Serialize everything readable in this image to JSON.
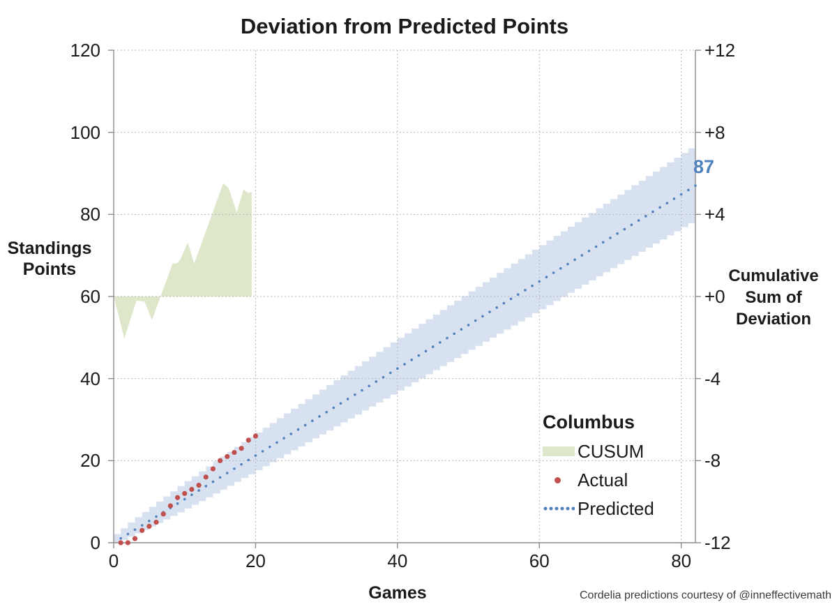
{
  "title": "Deviation from Predicted Points",
  "credit": "Cordelia predictions courtesy of @inneffectivemath",
  "colors": {
    "cusum_fill": "#dfe7ca",
    "band_fill": "#d7e1ef",
    "actual_point": "#c0504d",
    "predicted_line": "#4f81bd",
    "gridline": "#b5b5b5",
    "axis_line": "#8c8c8c",
    "text": "#1a1a1a"
  },
  "axes": {
    "x": {
      "label": "Games",
      "ticks": [
        0,
        20,
        40,
        60,
        80
      ],
      "min": 0,
      "max": 82
    },
    "y_left": {
      "label_lines": [
        "Standings",
        "Points"
      ],
      "ticks": [
        0,
        20,
        40,
        60,
        80,
        100,
        120
      ],
      "min": 0,
      "max": 120
    },
    "y_right": {
      "label_lines": [
        "Cumulative",
        "Sum of",
        "Deviation"
      ],
      "tick_labels": [
        "+12",
        "+8",
        "+4",
        "+0",
        "-4",
        "-8",
        "-12"
      ],
      "tick_values": [
        12,
        8,
        4,
        0,
        -4,
        -8,
        -12
      ],
      "min": -12,
      "max": 12
    }
  },
  "legend": {
    "title": "Columbus",
    "items": [
      {
        "label": "CUSUM",
        "type": "area",
        "color": "#dfe7ca"
      },
      {
        "label": "Actual",
        "type": "point",
        "color": "#c0504d"
      },
      {
        "label": "Predicted",
        "type": "dotted-line",
        "color": "#4f81bd"
      }
    ]
  },
  "annotation": {
    "text": "87",
    "color": "#4f81bd"
  },
  "chart_data": {
    "type": "combo",
    "title": "Deviation from Predicted Points",
    "xlabel": "Games",
    "x_range": [
      0,
      82
    ],
    "y_left_range": [
      0,
      120
    ],
    "y_right_range": [
      -12,
      12
    ],
    "grid": "dashed",
    "legend_position": "inside-lower-right",
    "series": [
      {
        "name": "CUSUM",
        "type": "area",
        "axis": "right",
        "color": "#dfe7ca",
        "baseline": 0,
        "points": [
          [
            0,
            0
          ],
          [
            1.5,
            -2.05
          ],
          [
            3.2,
            -0.2
          ],
          [
            4.35,
            -0.25
          ],
          [
            5.4,
            -1.15
          ],
          [
            8.3,
            1.6
          ],
          [
            8.9,
            1.62
          ],
          [
            9.35,
            1.78
          ],
          [
            10.45,
            2.62
          ],
          [
            11.35,
            1.6
          ],
          [
            15.45,
            5.52
          ],
          [
            16.2,
            5.28
          ],
          [
            17.35,
            4.1
          ],
          [
            18.3,
            5.22
          ],
          [
            18.95,
            5.05
          ],
          [
            19.45,
            5.1
          ]
        ]
      },
      {
        "name": "Actual",
        "type": "scatter",
        "axis": "left",
        "color": "#c0504d",
        "games": [
          1,
          2,
          3,
          4,
          5,
          6,
          7,
          8,
          9,
          10,
          11,
          12,
          13,
          14,
          15,
          16,
          17,
          18,
          19,
          20
        ],
        "values": [
          0,
          0,
          1,
          3,
          4,
          5,
          7,
          9,
          11,
          12,
          13,
          14,
          16,
          18,
          20,
          21,
          22,
          23,
          25,
          26
        ]
      },
      {
        "name": "Predicted",
        "type": "dotted-line",
        "axis": "left",
        "color": "#4f81bd",
        "start_game": 1,
        "end_game": 82,
        "start_value": 0,
        "end_value": 87,
        "end_label": "87"
      },
      {
        "name": "Prediction band",
        "type": "stepped-band",
        "axis": "left",
        "color": "#d7e1ef",
        "control_points": [
          {
            "game": 0,
            "low": 0,
            "high": 0
          },
          {
            "game": 1,
            "low": 0.1,
            "high": 2.1
          },
          {
            "game": 2,
            "low": 0.7,
            "high": 3.5
          },
          {
            "game": 3,
            "low": 1.5,
            "high": 4.9
          },
          {
            "game": 5,
            "low": 3.1,
            "high": 7.5
          },
          {
            "game": 10,
            "low": 7.4,
            "high": 13.8
          },
          {
            "game": 15,
            "low": 12.0,
            "high": 19.8
          },
          {
            "game": 20,
            "low": 16.7,
            "high": 25.7
          },
          {
            "game": 30,
            "low": 26.4,
            "high": 37.3
          },
          {
            "game": 40,
            "low": 36.1,
            "high": 48.8
          },
          {
            "game": 50,
            "low": 46.0,
            "high": 60.1
          },
          {
            "game": 60,
            "low": 55.9,
            "high": 71.4
          },
          {
            "game": 70,
            "low": 65.9,
            "high": 82.6
          },
          {
            "game": 80,
            "low": 75.9,
            "high": 93.8
          },
          {
            "game": 82,
            "low": 77.9,
            "high": 96.1
          }
        ]
      }
    ]
  }
}
